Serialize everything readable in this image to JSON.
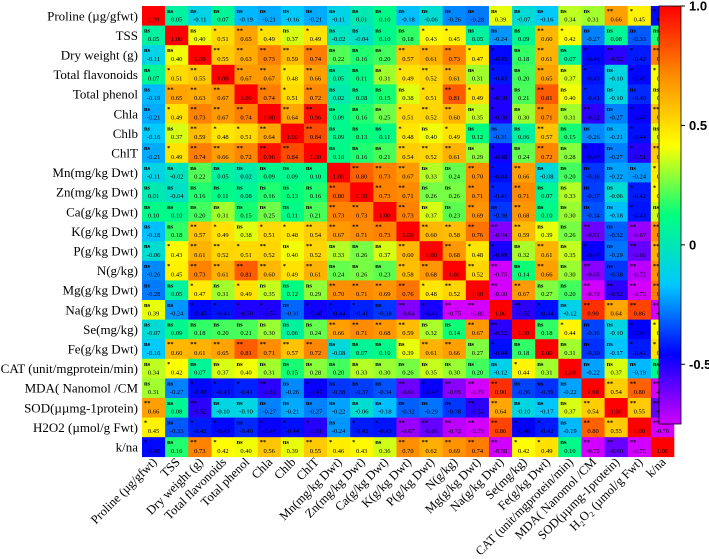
{
  "chart_data": {
    "type": "heatmap",
    "title": "",
    "labels": [
      "Proline (µg/gfwt)",
      "TSS",
      "Dry weight (g)",
      "Total flavonoids",
      "Total phenol",
      "Chla",
      "Chlb",
      "ChlT",
      "Mn(mg/kg Dwt)",
      "Zn(mg/kg Dwt)",
      "Ca(g/kg Dwt)",
      "K(g/kg Dwt)",
      "P(g/kg Dwt)",
      "N(g/kg)",
      "Mg(g/kg Dwt)",
      "Na(g/kg Dwt)",
      "Se(mg/kg)",
      "Fe(g/kg Dwt)",
      "CAT (unit/mgprotein/min)",
      "MDA( Nanomol /CM",
      "SOD(µµmg-1protein)",
      "H2O2 (µmol/g Fwt)",
      "k/na"
    ],
    "x_labels": [
      "Proline (µg/gfwt)",
      "TSS",
      "Dry weight (g)",
      "Total flavonoids",
      "Total phenol",
      "Chla",
      "Chlb",
      "ChlT",
      "Mn(mg/kg Dwt)",
      "Zn(mg/kg Dwt)",
      "Ca(g/kg Dwt)",
      "K(g/kg Dwt)",
      "P(g/kg Dwt)",
      "N(g/kg)",
      "Mg(g/kg Dwt)",
      "Na(g/kg Dwt)",
      "Se(mg/kg)",
      "Fe(g/kg Dwt)",
      "CAT (unit/mgprotein/min)",
      "MDA( Nanomol /CM",
      "SOD(µµmg-1protein)",
      "H₂O₂ (µmol/g Fwt)",
      "k/na"
    ],
    "values": [
      [
        1.0,
        0.05,
        -0.11,
        0.07,
        -0.19,
        -0.21,
        -0.16,
        -0.21,
        -0.11,
        0.01,
        0.1,
        -0.18,
        -0.06,
        -0.26,
        -0.28,
        0.39,
        -0.07,
        -0.16,
        0.34,
        0.31,
        0.66,
        0.45,
        -0.45
      ],
      [
        0.05,
        1.0,
        0.4,
        0.51,
        0.65,
        0.49,
        0.37,
        0.49,
        -0.02,
        -0.04,
        0.1,
        0.18,
        0.43,
        0.45,
        0.05,
        -0.24,
        0.09,
        0.6,
        0.42,
        -0.27,
        0.08,
        -0.33,
        0.16
      ],
      [
        -0.11,
        0.4,
        1.0,
        0.55,
        0.63,
        0.73,
        0.59,
        0.74,
        0.22,
        0.16,
        0.2,
        0.57,
        0.61,
        0.73,
        0.47,
        -0.45,
        0.18,
        0.61,
        0.07,
        -0.45,
        -0.52,
        -0.42,
        0.73
      ],
      [
        0.07,
        0.51,
        0.55,
        1.0,
        0.67,
        0.67,
        0.48,
        0.66,
        0.05,
        0.11,
        0.31,
        0.49,
        0.52,
        0.61,
        0.31,
        -0.43,
        0.2,
        0.65,
        0.37,
        -0.43,
        -0.1,
        -0.45,
        0.42
      ],
      [
        -0.19,
        0.65,
        0.63,
        0.67,
        1.0,
        0.74,
        0.51,
        0.72,
        0.02,
        0.08,
        0.15,
        0.38,
        0.51,
        0.81,
        0.49,
        -0.5,
        0.21,
        0.81,
        0.4,
        -0.41,
        -0.1,
        -0.4,
        0.4
      ],
      [
        -0.21,
        0.49,
        0.73,
        0.67,
        0.74,
        1.0,
        0.64,
        0.96,
        0.09,
        0.16,
        0.25,
        0.51,
        0.52,
        0.6,
        0.35,
        -0.5,
        0.3,
        0.71,
        0.31,
        -0.52,
        -0.27,
        -0.47,
        0.56
      ],
      [
        -0.16,
        0.37,
        0.59,
        0.48,
        0.51,
        0.64,
        1.0,
        0.84,
        0.09,
        0.13,
        0.11,
        0.48,
        0.4,
        0.49,
        0.12,
        -0.31,
        0.06,
        0.57,
        0.15,
        -0.26,
        -0.21,
        -0.44,
        0.39
      ],
      [
        -0.21,
        0.49,
        0.74,
        0.66,
        0.72,
        0.96,
        0.84,
        1.0,
        0.1,
        0.16,
        0.21,
        0.54,
        0.52,
        0.61,
        0.29,
        -0.48,
        0.24,
        0.72,
        0.28,
        -0.47,
        -0.27,
        -0.51,
        0.55
      ],
      [
        -0.11,
        -0.02,
        0.22,
        0.05,
        0.02,
        0.09,
        0.09,
        0.1,
        1.0,
        0.8,
        0.73,
        0.67,
        0.33,
        0.24,
        0.7,
        -0.44,
        0.66,
        -0.08,
        0.2,
        -0.38,
        -0.22,
        -0.24,
        0.46
      ],
      [
        0.01,
        -0.04,
        0.16,
        0.11,
        0.08,
        0.16,
        0.13,
        0.16,
        0.8,
        1.0,
        0.73,
        0.71,
        0.26,
        0.26,
        0.71,
        -0.41,
        0.71,
        0.07,
        0.33,
        -0.37,
        -0.06,
        -0.42,
        0.43
      ],
      [
        0.1,
        0.1,
        0.2,
        0.31,
        0.15,
        0.25,
        0.11,
        0.21,
        0.73,
        0.73,
        1.0,
        0.73,
        0.37,
        0.23,
        0.69,
        -0.38,
        0.68,
        0.1,
        0.3,
        -0.34,
        -0.18,
        -0.43,
        0.36
      ],
      [
        -0.18,
        0.18,
        0.57,
        0.49,
        0.38,
        0.51,
        0.48,
        0.54,
        0.67,
        0.71,
        0.73,
        1.0,
        0.6,
        0.58,
        0.76,
        -0.64,
        0.59,
        0.39,
        0.26,
        -0.61,
        -0.32,
        -0.67,
        0.7
      ],
      [
        -0.06,
        0.43,
        0.61,
        0.52,
        0.51,
        0.52,
        0.4,
        0.52,
        0.33,
        0.26,
        0.37,
        0.6,
        1.0,
        0.68,
        0.48,
        -0.49,
        0.32,
        0.61,
        0.35,
        -0.47,
        -0.29,
        -0.6,
        0.62
      ],
      [
        -0.26,
        0.45,
        0.73,
        0.61,
        0.81,
        0.6,
        0.49,
        0.61,
        0.24,
        0.26,
        0.23,
        0.58,
        0.68,
        1.0,
        0.52,
        -0.75,
        0.14,
        0.66,
        0.3,
        -0.65,
        -0.38,
        -0.72,
        0.69
      ],
      [
        -0.28,
        0.05,
        0.47,
        0.31,
        0.49,
        0.35,
        0.12,
        0.29,
        0.7,
        0.71,
        0.69,
        0.76,
        0.48,
        0.52,
        1.0,
        -0.8,
        0.67,
        0.27,
        0.2,
        -0.79,
        -0.52,
        -0.79,
        0.74
      ],
      [
        0.39,
        -0.24,
        -0.45,
        -0.43,
        -0.5,
        -0.5,
        -0.31,
        -0.48,
        -0.44,
        -0.41,
        -0.38,
        -0.64,
        -0.49,
        -0.75,
        -0.8,
        1.0,
        -0.52,
        -0.44,
        -0.12,
        0.9,
        0.64,
        0.86,
        -0.88
      ],
      [
        -0.07,
        0.09,
        0.18,
        0.2,
        0.21,
        0.3,
        0.06,
        0.24,
        0.66,
        0.71,
        0.68,
        0.59,
        0.32,
        0.14,
        0.67,
        -0.52,
        1.0,
        0.18,
        0.44,
        -0.36,
        -0.1,
        -0.46,
        0.42
      ],
      [
        -0.16,
        0.6,
        0.61,
        0.65,
        0.81,
        0.71,
        0.57,
        0.72,
        -0.08,
        0.07,
        0.1,
        0.39,
        0.61,
        0.66,
        0.27,
        -0.44,
        0.18,
        1.0,
        0.31,
        -0.39,
        -0.17,
        -0.42,
        0.49
      ],
      [
        0.34,
        0.42,
        0.07,
        0.37,
        0.4,
        0.31,
        0.15,
        0.28,
        0.2,
        0.33,
        0.3,
        0.26,
        0.35,
        0.3,
        0.2,
        -0.12,
        0.44,
        0.31,
        1.0,
        -0.22,
        0.37,
        -0.19,
        0.1
      ],
      [
        0.31,
        -0.27,
        -0.45,
        -0.43,
        -0.41,
        -0.52,
        -0.26,
        -0.47,
        -0.38,
        -0.37,
        -0.34,
        -0.61,
        -0.47,
        -0.65,
        -0.79,
        0.9,
        -0.36,
        -0.39,
        -0.22,
        1.0,
        0.54,
        0.8,
        -0.79
      ],
      [
        0.66,
        0.08,
        -0.52,
        -0.1,
        -0.1,
        -0.27,
        -0.21,
        -0.27,
        -0.22,
        -0.06,
        -0.18,
        -0.32,
        -0.29,
        -0.38,
        -0.52,
        0.64,
        -0.1,
        -0.17,
        0.37,
        0.54,
        1.0,
        0.55,
        -0.6
      ],
      [
        0.45,
        -0.33,
        -0.42,
        -0.45,
        -0.4,
        -0.47,
        -0.44,
        -0.51,
        -0.24,
        -0.42,
        -0.43,
        -0.67,
        -0.6,
        -0.72,
        -0.79,
        0.86,
        -0.46,
        -0.42,
        -0.19,
        0.8,
        0.55,
        1.0,
        -0.76
      ],
      [
        -0.45,
        0.16,
        0.73,
        0.42,
        0.4,
        0.56,
        0.39,
        0.55,
        0.46,
        0.43,
        0.36,
        0.7,
        0.62,
        0.69,
        0.74,
        -0.88,
        0.42,
        0.49,
        0.1,
        -0.79,
        -0.6,
        -0.76,
        1.0
      ]
    ],
    "colorbar": {
      "min": -0.75,
      "max": 1.0,
      "ticks": [
        1.0,
        0.5,
        0,
        -0.5
      ],
      "tick_labels": [
        "1.0",
        "0.5",
        "0",
        "-0.5"
      ],
      "colors": [
        "#d100ff",
        "#0000ff",
        "#00c8ff",
        "#00ff7f",
        "#ffff00",
        "#ff8c00",
        "#ff0000"
      ]
    }
  }
}
